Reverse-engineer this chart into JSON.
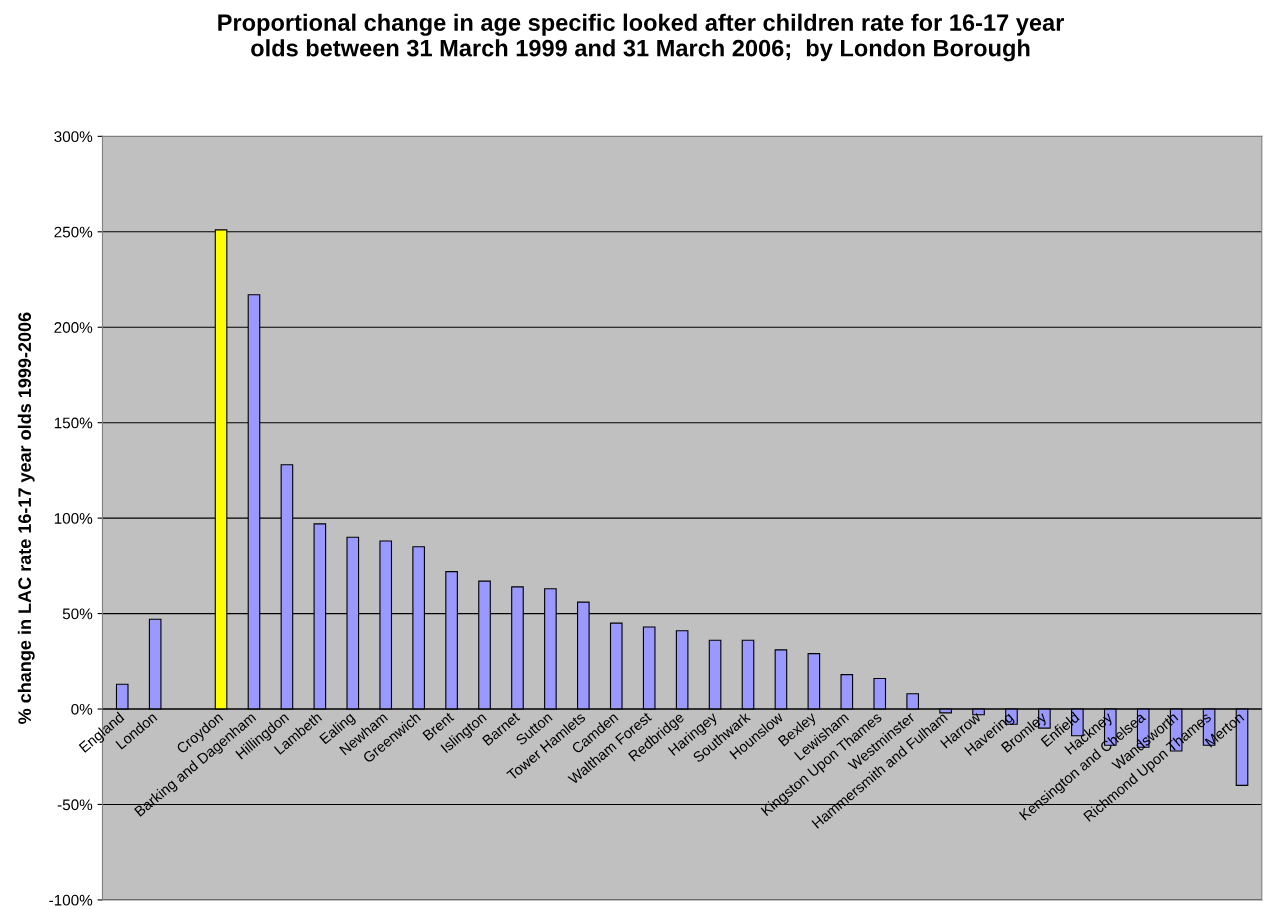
{
  "chart_data": {
    "type": "bar",
    "title": "Proportional change in age specific looked after children rate for 16-17 year\nolds between 31 March 1999 and 31 March 2006;  by London Borough",
    "ylabel": "% change in LAC rate 16-17 year olds 1999-2006",
    "categories": [
      "England",
      "London",
      null,
      "Croydon",
      "Barking and Dagenham",
      "Hillingdon",
      "Lambeth",
      "Ealing",
      "Newham",
      "Greenwich",
      "Brent",
      "Islington",
      "Barnet",
      "Sutton",
      "Tower Hamlets",
      "Camden",
      "Waltham Forest",
      "Redbridge",
      "Haringey",
      "Southwark",
      "Hounslow",
      "Bexley",
      "Lewisham",
      "Kingston Upon Thames",
      "Westminster",
      "Hammersmith and Fulham",
      "Harrow",
      "Havering",
      "Bromley",
      "Enfield",
      "Hackney",
      "Kensington and Chelsea",
      "Wandsworth",
      "Richmond Upon Thames",
      "Merton"
    ],
    "values": [
      13,
      47,
      null,
      251,
      217,
      128,
      97,
      90,
      88,
      85,
      72,
      67,
      64,
      63,
      56,
      45,
      43,
      41,
      36,
      36,
      31,
      29,
      18,
      16,
      8,
      -2,
      -3,
      -8,
      -10,
      -14,
      -19,
      -20,
      -22,
      -19,
      -40
    ],
    "colors": [
      "#9999ff",
      "#9999ff",
      "#9999ff",
      "#ffff00",
      "#9999ff",
      "#9999ff",
      "#9999ff",
      "#9999ff",
      "#9999ff",
      "#9999ff",
      "#9999ff",
      "#9999ff",
      "#9999ff",
      "#9999ff",
      "#9999ff",
      "#9999ff",
      "#9999ff",
      "#9999ff",
      "#9999ff",
      "#9999ff",
      "#9999ff",
      "#9999ff",
      "#9999ff",
      "#9999ff",
      "#9999ff",
      "#9999ff",
      "#9999ff",
      "#9999ff",
      "#9999ff",
      "#9999ff",
      "#9999ff",
      "#9999ff",
      "#9999ff",
      "#9999ff",
      "#9999ff"
    ],
    "ylim": [
      -100,
      300
    ],
    "yticks": [
      {
        "value": -100,
        "label": "-100%"
      },
      {
        "value": -50,
        "label": "-50%"
      },
      {
        "value": 0,
        "label": "0%"
      },
      {
        "value": 50,
        "label": "50%"
      },
      {
        "value": 100,
        "label": "100%"
      },
      {
        "value": 150,
        "label": "150%"
      },
      {
        "value": 200,
        "label": "200%"
      },
      {
        "value": 250,
        "label": "250%"
      },
      {
        "value": 300,
        "label": "300%"
      }
    ],
    "grid": "y"
  }
}
